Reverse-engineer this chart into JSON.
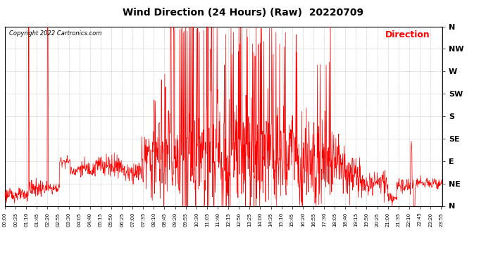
{
  "title": "Wind Direction (24 Hours) (Raw)  20220709",
  "copyright": "Copyright 2022 Cartronics.com",
  "legend_label": "Direction",
  "legend_color": "#ff0000",
  "line_color": "#ff0000",
  "background_color": "#ffffff",
  "grid_color": "#999999",
  "y_labels": [
    "N",
    "NE",
    "E",
    "SE",
    "S",
    "SW",
    "W",
    "NW",
    "N"
  ],
  "y_values": [
    0,
    45,
    90,
    135,
    180,
    225,
    270,
    315,
    360
  ],
  "ylim": [
    0,
    360
  ],
  "xlim": [
    0,
    1439
  ],
  "x_tick_interval_minutes": 35,
  "figsize": [
    6.9,
    3.75
  ],
  "dpi": 100,
  "title_fontsize": 10,
  "copyright_fontsize": 6,
  "legend_fontsize": 9,
  "ytick_fontsize": 8,
  "xtick_fontsize": 5
}
